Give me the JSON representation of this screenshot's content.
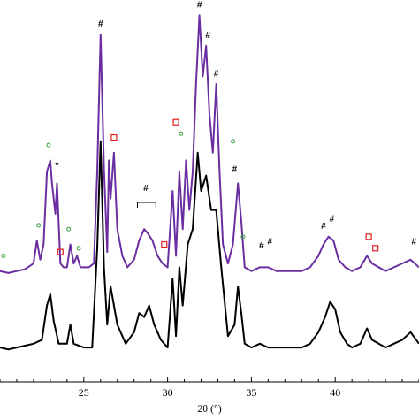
{
  "chart_data": {
    "type": "line",
    "xlabel": "2θ (°)",
    "xlim": [
      20,
      45
    ],
    "ylim": [
      0,
      1
    ],
    "x_ticks": [
      25,
      30,
      35,
      40
    ],
    "grid": false,
    "legend": "none",
    "series": [
      {
        "color": "#6a2ea0",
        "points": [
          [
            20,
            0.29
          ],
          [
            20.5,
            0.285
          ],
          [
            21,
            0.29
          ],
          [
            21.5,
            0.295
          ],
          [
            22,
            0.31
          ],
          [
            22.2,
            0.37
          ],
          [
            22.4,
            0.32
          ],
          [
            22.6,
            0.36
          ],
          [
            22.8,
            0.55
          ],
          [
            23.0,
            0.58
          ],
          [
            23.1,
            0.52
          ],
          [
            23.3,
            0.44
          ],
          [
            23.4,
            0.52
          ],
          [
            23.6,
            0.31
          ],
          [
            23.8,
            0.3
          ],
          [
            24.0,
            0.3
          ],
          [
            24.2,
            0.36
          ],
          [
            24.4,
            0.31
          ],
          [
            24.6,
            0.33
          ],
          [
            24.8,
            0.3
          ],
          [
            25.0,
            0.3
          ],
          [
            25.3,
            0.3
          ],
          [
            25.6,
            0.31
          ],
          [
            25.8,
            0.55
          ],
          [
            26.0,
            0.91
          ],
          [
            26.2,
            0.56
          ],
          [
            26.4,
            0.34
          ],
          [
            26.5,
            0.58
          ],
          [
            26.6,
            0.48
          ],
          [
            26.8,
            0.6
          ],
          [
            27.0,
            0.4
          ],
          [
            27.3,
            0.33
          ],
          [
            27.6,
            0.3
          ],
          [
            28.0,
            0.32
          ],
          [
            28.3,
            0.37
          ],
          [
            28.6,
            0.4
          ],
          [
            28.8,
            0.39
          ],
          [
            29.1,
            0.37
          ],
          [
            29.4,
            0.33
          ],
          [
            29.7,
            0.31
          ],
          [
            30.0,
            0.3
          ],
          [
            30.3,
            0.5
          ],
          [
            30.5,
            0.33
          ],
          [
            30.7,
            0.55
          ],
          [
            30.9,
            0.4
          ],
          [
            31.1,
            0.58
          ],
          [
            31.3,
            0.45
          ],
          [
            31.5,
            0.55
          ],
          [
            31.7,
            0.78
          ],
          [
            31.9,
            0.96
          ],
          [
            32.1,
            0.8
          ],
          [
            32.3,
            0.88
          ],
          [
            32.5,
            0.7
          ],
          [
            32.7,
            0.6
          ],
          [
            32.9,
            0.78
          ],
          [
            33.1,
            0.55
          ],
          [
            33.3,
            0.36
          ],
          [
            33.6,
            0.31
          ],
          [
            33.9,
            0.36
          ],
          [
            34.2,
            0.52
          ],
          [
            34.4,
            0.42
          ],
          [
            34.6,
            0.3
          ],
          [
            35.0,
            0.29
          ],
          [
            35.5,
            0.3
          ],
          [
            36.0,
            0.3
          ],
          [
            36.5,
            0.29
          ],
          [
            37.0,
            0.29
          ],
          [
            37.5,
            0.29
          ],
          [
            38.0,
            0.29
          ],
          [
            38.5,
            0.3
          ],
          [
            39.0,
            0.33
          ],
          [
            39.3,
            0.36
          ],
          [
            39.6,
            0.38
          ],
          [
            39.9,
            0.37
          ],
          [
            40.2,
            0.32
          ],
          [
            40.6,
            0.3
          ],
          [
            41.0,
            0.29
          ],
          [
            41.5,
            0.3
          ],
          [
            41.9,
            0.33
          ],
          [
            42.2,
            0.31
          ],
          [
            42.6,
            0.3
          ],
          [
            43.0,
            0.29
          ],
          [
            43.5,
            0.3
          ],
          [
            44.0,
            0.31
          ],
          [
            44.5,
            0.32
          ],
          [
            45.0,
            0.3
          ]
        ]
      },
      {
        "color": "#000000",
        "points": [
          [
            20,
            0.09
          ],
          [
            20.5,
            0.085
          ],
          [
            21,
            0.09
          ],
          [
            21.5,
            0.095
          ],
          [
            22,
            0.1
          ],
          [
            22.5,
            0.11
          ],
          [
            22.8,
            0.2
          ],
          [
            23.0,
            0.23
          ],
          [
            23.2,
            0.16
          ],
          [
            23.5,
            0.1
          ],
          [
            24.0,
            0.1
          ],
          [
            24.2,
            0.15
          ],
          [
            24.4,
            0.1
          ],
          [
            25.0,
            0.09
          ],
          [
            25.5,
            0.09
          ],
          [
            25.8,
            0.35
          ],
          [
            26.0,
            0.63
          ],
          [
            26.2,
            0.3
          ],
          [
            26.4,
            0.15
          ],
          [
            26.6,
            0.25
          ],
          [
            26.8,
            0.2
          ],
          [
            27.0,
            0.15
          ],
          [
            27.5,
            0.1
          ],
          [
            28.0,
            0.13
          ],
          [
            28.3,
            0.18
          ],
          [
            28.6,
            0.17
          ],
          [
            28.9,
            0.2
          ],
          [
            29.2,
            0.15
          ],
          [
            29.6,
            0.11
          ],
          [
            30.0,
            0.09
          ],
          [
            30.3,
            0.27
          ],
          [
            30.5,
            0.12
          ],
          [
            30.7,
            0.3
          ],
          [
            30.9,
            0.2
          ],
          [
            31.2,
            0.36
          ],
          [
            31.5,
            0.4
          ],
          [
            31.8,
            0.6
          ],
          [
            32.0,
            0.5
          ],
          [
            32.3,
            0.54
          ],
          [
            32.6,
            0.45
          ],
          [
            32.9,
            0.45
          ],
          [
            33.2,
            0.3
          ],
          [
            33.6,
            0.12
          ],
          [
            34.0,
            0.15
          ],
          [
            34.2,
            0.25
          ],
          [
            34.4,
            0.18
          ],
          [
            34.6,
            0.1
          ],
          [
            35.0,
            0.09
          ],
          [
            35.5,
            0.1
          ],
          [
            36.0,
            0.09
          ],
          [
            36.5,
            0.09
          ],
          [
            37.0,
            0.09
          ],
          [
            38.0,
            0.09
          ],
          [
            38.5,
            0.1
          ],
          [
            39.0,
            0.13
          ],
          [
            39.4,
            0.17
          ],
          [
            39.7,
            0.21
          ],
          [
            40.0,
            0.19
          ],
          [
            40.3,
            0.13
          ],
          [
            40.7,
            0.1
          ],
          [
            41.0,
            0.09
          ],
          [
            41.5,
            0.1
          ],
          [
            41.9,
            0.14
          ],
          [
            42.2,
            0.11
          ],
          [
            42.6,
            0.1
          ],
          [
            43.0,
            0.09
          ],
          [
            43.5,
            0.1
          ],
          [
            44.0,
            0.11
          ],
          [
            44.5,
            0.13
          ],
          [
            45.0,
            0.1
          ]
        ]
      }
    ],
    "annotations": [
      {
        "x": 26.0,
        "y": 0.93,
        "symbol": "#"
      },
      {
        "x": 31.9,
        "y": 0.98,
        "symbol": "#"
      },
      {
        "x": 32.4,
        "y": 0.9,
        "symbol": "#"
      },
      {
        "x": 32.9,
        "y": 0.8,
        "symbol": "#"
      },
      {
        "x": 34.0,
        "y": 0.55,
        "symbol": "#"
      },
      {
        "x": 28.7,
        "y": 0.5,
        "symbol": "#"
      },
      {
        "x": 35.6,
        "y": 0.35,
        "symbol": "#"
      },
      {
        "x": 36.1,
        "y": 0.36,
        "symbol": "#"
      },
      {
        "x": 39.3,
        "y": 0.4,
        "symbol": "#"
      },
      {
        "x": 39.8,
        "y": 0.42,
        "symbol": "#"
      },
      {
        "x": 44.7,
        "y": 0.36,
        "symbol": "#"
      },
      {
        "x": 23.4,
        "y": 0.56,
        "symbol": "*"
      }
    ],
    "circle_markers": [
      {
        "x": 20.2,
        "y": 0.33
      },
      {
        "x": 22.3,
        "y": 0.41
      },
      {
        "x": 22.9,
        "y": 0.62
      },
      {
        "x": 24.1,
        "y": 0.4
      },
      {
        "x": 24.7,
        "y": 0.35
      },
      {
        "x": 30.8,
        "y": 0.65
      },
      {
        "x": 34.5,
        "y": 0.38
      },
      {
        "x": 33.9,
        "y": 0.63
      }
    ],
    "square_markers": [
      {
        "x": 23.6,
        "y": 0.34
      },
      {
        "x": 26.8,
        "y": 0.64
      },
      {
        "x": 29.8,
        "y": 0.36
      },
      {
        "x": 30.5,
        "y": 0.68
      },
      {
        "x": 42.0,
        "y": 0.38
      },
      {
        "x": 42.4,
        "y": 0.35
      }
    ],
    "brackets": [
      {
        "x1": 28.2,
        "x2": 29.3,
        "y": 0.47
      }
    ]
  }
}
